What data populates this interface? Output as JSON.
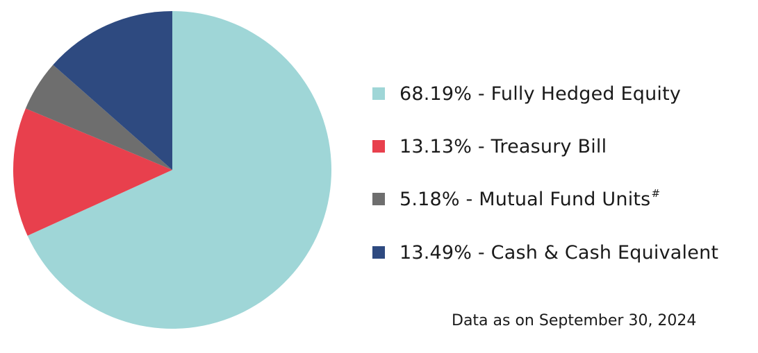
{
  "chart_data": {
    "type": "pie",
    "slices": [
      {
        "value": 68.19,
        "label": "68.19% - Fully Hedged Equity",
        "color": "#9fd6d7"
      },
      {
        "value": 13.13,
        "label": "13.13% - Treasury Bill",
        "color": "#e8404d"
      },
      {
        "value": 5.18,
        "label": "5.18% - Mutual Fund Units",
        "label_suffix": "#",
        "color": "#6e6e6e"
      },
      {
        "value": 13.49,
        "label": "13.49% - Cash & Cash Equivalent",
        "color": "#2e4a80"
      }
    ],
    "legend_position": "right"
  },
  "footnote": "Data as on September 30, 2024"
}
